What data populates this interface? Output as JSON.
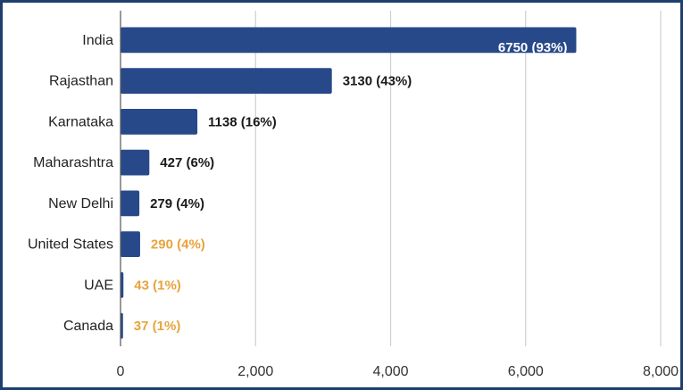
{
  "chart_data": {
    "type": "bar",
    "orientation": "horizontal",
    "title": "",
    "xlabel": "",
    "ylabel": "",
    "xlim": [
      0,
      8000
    ],
    "grid": true,
    "bar_color": "#27498a",
    "categories": [
      "India",
      "Rajasthan",
      "Karnataka",
      "Maharashtra",
      "New Delhi",
      "United States",
      "UAE",
      "Canada"
    ],
    "values": [
      6750,
      3130,
      1138,
      427,
      279,
      290,
      43,
      37
    ],
    "data_labels": [
      "6750 (93%)",
      "3130 (43%)",
      "1138 (16%)",
      "427 (6%)",
      "279 (4%)",
      "290 (4%)",
      "43 (1%)",
      "37 (1%)"
    ],
    "label_colors": [
      "#ffffff",
      "#1a1a1a",
      "#1a1a1a",
      "#1a1a1a",
      "#1a1a1a",
      "#e8a33c",
      "#e8a33c",
      "#e8a33c"
    ],
    "x_ticks": [
      0,
      2000,
      4000,
      6000,
      8000
    ],
    "x_tick_labels": [
      "0",
      "2,000",
      "4,000",
      "6,000",
      "8,000"
    ]
  }
}
